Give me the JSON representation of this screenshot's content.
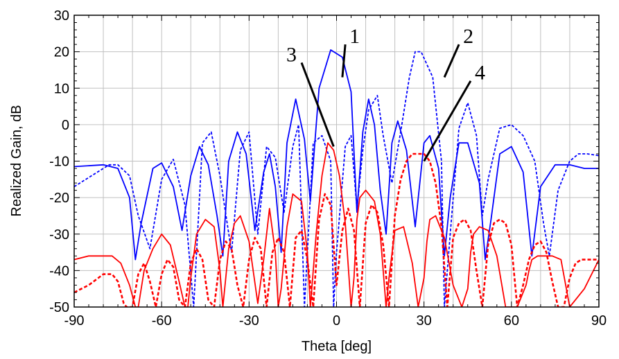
{
  "chart_data": {
    "type": "line",
    "title": "",
    "xlabel": "Theta [deg]",
    "ylabel": "Realized Gain, dB",
    "xlim": [
      -90,
      90
    ],
    "ylim": [
      -50,
      30
    ],
    "xticks": [
      -90,
      -60,
      -30,
      0,
      30,
      60,
      90
    ],
    "yticks": [
      30,
      20,
      10,
      0,
      -10,
      -20,
      -30,
      -40,
      -50
    ],
    "grid": true,
    "legend": "none",
    "series": [
      {
        "color": "#0000ff",
        "style": "solid",
        "x": [
          -90,
          -80,
          -75,
          -71,
          -69,
          -67,
          -63,
          -60,
          -56,
          -53,
          -50,
          -47,
          -44,
          -41,
          -39,
          -37,
          -34,
          -31,
          -28,
          -25,
          -23,
          -21,
          -19,
          -17,
          -14,
          -11,
          -9,
          -6,
          -2,
          2,
          5,
          7,
          9,
          11,
          13,
          15,
          17,
          19,
          21,
          24,
          27,
          30,
          32,
          35,
          37,
          39,
          42,
          45,
          49,
          51,
          53,
          56,
          60,
          64,
          67,
          70,
          75,
          80,
          85,
          90
        ],
        "y": [
          -11.5,
          -11,
          -12,
          -20,
          -37,
          -27,
          -12,
          -10.5,
          -17,
          -29,
          -14,
          -6,
          -11,
          -25,
          -36,
          -10,
          -2,
          -8,
          -29,
          -13,
          -8,
          -17,
          -35,
          -5,
          7,
          -4,
          -21,
          10,
          20.5,
          18.5,
          9,
          -24,
          -2,
          7,
          0,
          -18,
          -30,
          -5,
          1,
          -7,
          -28,
          -5,
          -3,
          -12,
          -36,
          -20,
          -5,
          -5,
          -16,
          -37,
          -26,
          -8,
          -6,
          -13,
          -36,
          -17,
          -11,
          -11,
          -12,
          -12
        ]
      },
      {
        "color": "#0000ff",
        "style": "dashed",
        "x": [
          -90,
          -86,
          -82,
          -78,
          -75,
          -71,
          -68,
          -64,
          -60,
          -56,
          -52,
          -49,
          -46,
          -43,
          -40,
          -36,
          -33,
          -30,
          -27,
          -24,
          -21,
          -18,
          -15,
          -13,
          -11,
          -8,
          -5,
          -2,
          -1,
          0,
          3,
          5,
          7,
          9,
          11,
          14,
          16,
          19,
          22,
          25,
          27,
          29,
          33,
          36,
          37,
          39,
          42,
          45,
          48,
          50,
          52,
          56,
          60,
          64,
          68,
          71,
          73,
          76,
          80,
          83,
          86,
          90
        ],
        "y": [
          -17,
          -15,
          -13,
          -11,
          -11,
          -14,
          -25,
          -34,
          -15,
          -9.5,
          -22,
          -50,
          -5,
          -2,
          -14,
          -35,
          -7,
          -2,
          -30,
          -6,
          -9,
          -24,
          -6,
          0,
          -50,
          -5,
          -3,
          -10,
          -50,
          -35,
          -6,
          -3,
          -23,
          -7,
          4,
          8,
          -3,
          -16,
          -2,
          13,
          20,
          20,
          13,
          -10,
          -50,
          -30,
          -1,
          6,
          -3,
          -25,
          -15,
          -1,
          0,
          -3,
          -10,
          -27,
          -36,
          -18,
          -10,
          -8,
          -8,
          -8.5
        ]
      },
      {
        "color": "#ff0000",
        "style": "solid",
        "x": [
          -90,
          -85,
          -80,
          -77,
          -74,
          -71,
          -69,
          -68,
          -66,
          -63,
          -60,
          -57,
          -54,
          -52,
          -51,
          -50,
          -48,
          -45,
          -42,
          -40,
          -39,
          -37,
          -35,
          -33,
          -30,
          -27,
          -25,
          -23,
          -21,
          -20,
          -19,
          -17,
          -15,
          -12,
          -10,
          -9,
          -7,
          -5,
          -3,
          -1,
          1,
          3,
          5,
          6,
          7,
          8,
          10,
          13,
          15,
          16,
          17,
          18,
          20,
          23,
          26,
          28,
          30,
          31,
          32,
          34,
          37,
          40,
          43,
          45,
          46,
          47,
          49,
          52,
          55,
          58,
          62,
          65,
          66,
          67,
          69,
          71,
          74,
          77,
          80,
          85,
          90
        ],
        "y": [
          -37,
          -36,
          -36,
          -36,
          -38,
          -44,
          -50,
          -50,
          -40,
          -34,
          -30,
          -33,
          -43,
          -50,
          -50,
          -42,
          -30,
          -26,
          -28,
          -40,
          -50,
          -34,
          -27,
          -25,
          -32,
          -49,
          -37,
          -23,
          -35,
          -50,
          -45,
          -28,
          -19,
          -21,
          -35,
          -50,
          -30,
          -14,
          -5,
          -7,
          -14,
          -27,
          -50,
          -42,
          -26,
          -20,
          -18,
          -21,
          -30,
          -40,
          -50,
          -42,
          -29,
          -28,
          -38,
          -50,
          -42,
          -32,
          -26,
          -25,
          -31,
          -44,
          -50,
          -45,
          -35,
          -30,
          -28,
          -29,
          -36,
          -50,
          -50,
          -44,
          -40,
          -37,
          -36,
          -36,
          -36,
          -37,
          -50,
          -45,
          -37
        ]
      },
      {
        "color": "#ff0000",
        "style": "dashed",
        "x": [
          -90,
          -85,
          -80,
          -77,
          -75,
          -73,
          -72,
          -70,
          -68,
          -66,
          -64,
          -62,
          -60,
          -58,
          -56,
          -54,
          -52,
          -50,
          -48,
          -46,
          -44,
          -42,
          -40,
          -38,
          -36,
          -34,
          -32,
          -30,
          -28,
          -26,
          -24,
          -22,
          -20,
          -18,
          -16,
          -14,
          -12,
          -10,
          -8,
          -6,
          -4,
          -2,
          0,
          2,
          4,
          6,
          8,
          10,
          12,
          14,
          16,
          18,
          20,
          22,
          24,
          26,
          28,
          30,
          32,
          34,
          36,
          38,
          40,
          42,
          44,
          46,
          48,
          50,
          52,
          54,
          56,
          58,
          60,
          62,
          64,
          66,
          68,
          70,
          72,
          74,
          76,
          78,
          80,
          82,
          84,
          86,
          88,
          90
        ],
        "y": [
          -46,
          -44,
          -41,
          -41,
          -43,
          -49,
          -50,
          -50,
          -41,
          -38,
          -43,
          -50,
          -41,
          -37,
          -39,
          -48,
          -50,
          -38,
          -34,
          -37,
          -48,
          -50,
          -37,
          -32,
          -34,
          -44,
          -50,
          -37,
          -31,
          -34,
          -50,
          -35,
          -31,
          -35,
          -50,
          -31,
          -29,
          -37,
          -50,
          -26,
          -19,
          -22,
          -44,
          -29,
          -23,
          -29,
          -50,
          -27,
          -22,
          -24,
          -33,
          -50,
          -25,
          -15,
          -10,
          -8,
          -8,
          -8,
          -10,
          -16,
          -28,
          -50,
          -31,
          -27,
          -26,
          -29,
          -40,
          -50,
          -33,
          -27,
          -26,
          -27,
          -33,
          -50,
          -44,
          -37,
          -33,
          -32,
          -35,
          -43,
          -50,
          -50,
          -42,
          -38,
          -37,
          -37,
          -37,
          -37
        ]
      }
    ],
    "annotations": [
      {
        "text": "1",
        "label_at": [
          3,
          22
        ],
        "points_to": [
          2,
          13
        ]
      },
      {
        "text": "2",
        "label_at": [
          42,
          22
        ],
        "points_to": [
          37,
          13
        ]
      },
      {
        "text": "3",
        "label_at": [
          -12,
          17
        ],
        "points_to": [
          -1,
          -6
        ]
      },
      {
        "text": "4",
        "label_at": [
          46,
          12
        ],
        "points_to": [
          30,
          -10
        ]
      }
    ]
  }
}
